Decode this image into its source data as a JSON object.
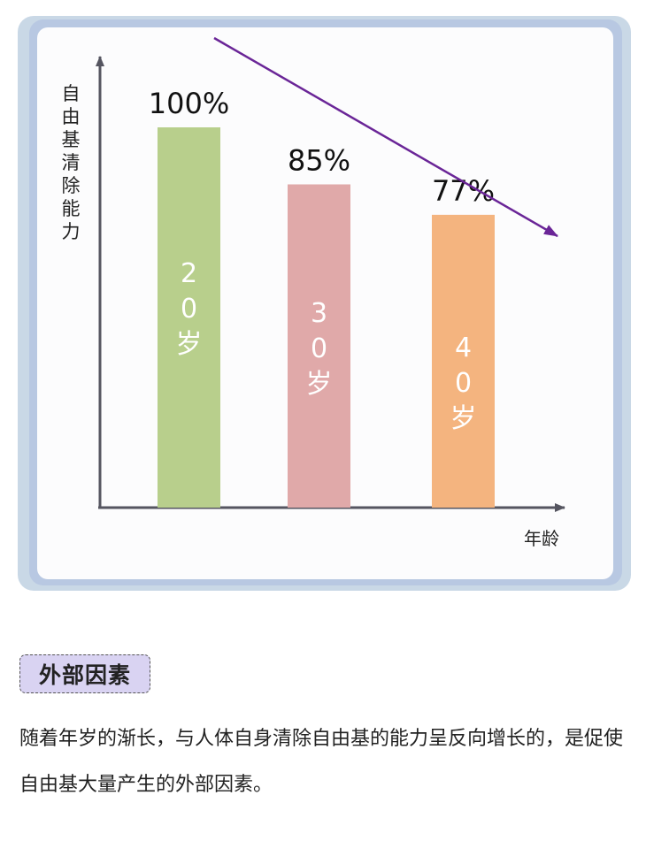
{
  "chart_data": {
    "type": "bar",
    "ylabel": "自由基清除能力",
    "xlabel": "年龄",
    "categories": [
      "20岁",
      "30岁",
      "40岁"
    ],
    "bar_texts": [
      [
        "2",
        "0",
        "岁"
      ],
      [
        "3",
        "0",
        "岁"
      ],
      [
        "4",
        "0",
        "岁"
      ]
    ],
    "values": [
      100,
      85,
      77
    ],
    "value_labels": [
      "100%",
      "85%",
      "77%"
    ],
    "colors": [
      "#b8cf8c",
      "#e0a9a9",
      "#f4b47f"
    ],
    "ylim": [
      0,
      120
    ],
    "trend_arrow": "decreasing",
    "trend_color": "#6a2597",
    "grid": false
  },
  "section": {
    "tag": "外部因素",
    "text": "随着年岁的渐长，与人体自身清除自由基的能力呈反向增长的，是促使自由基大量产生的外部因素。"
  }
}
